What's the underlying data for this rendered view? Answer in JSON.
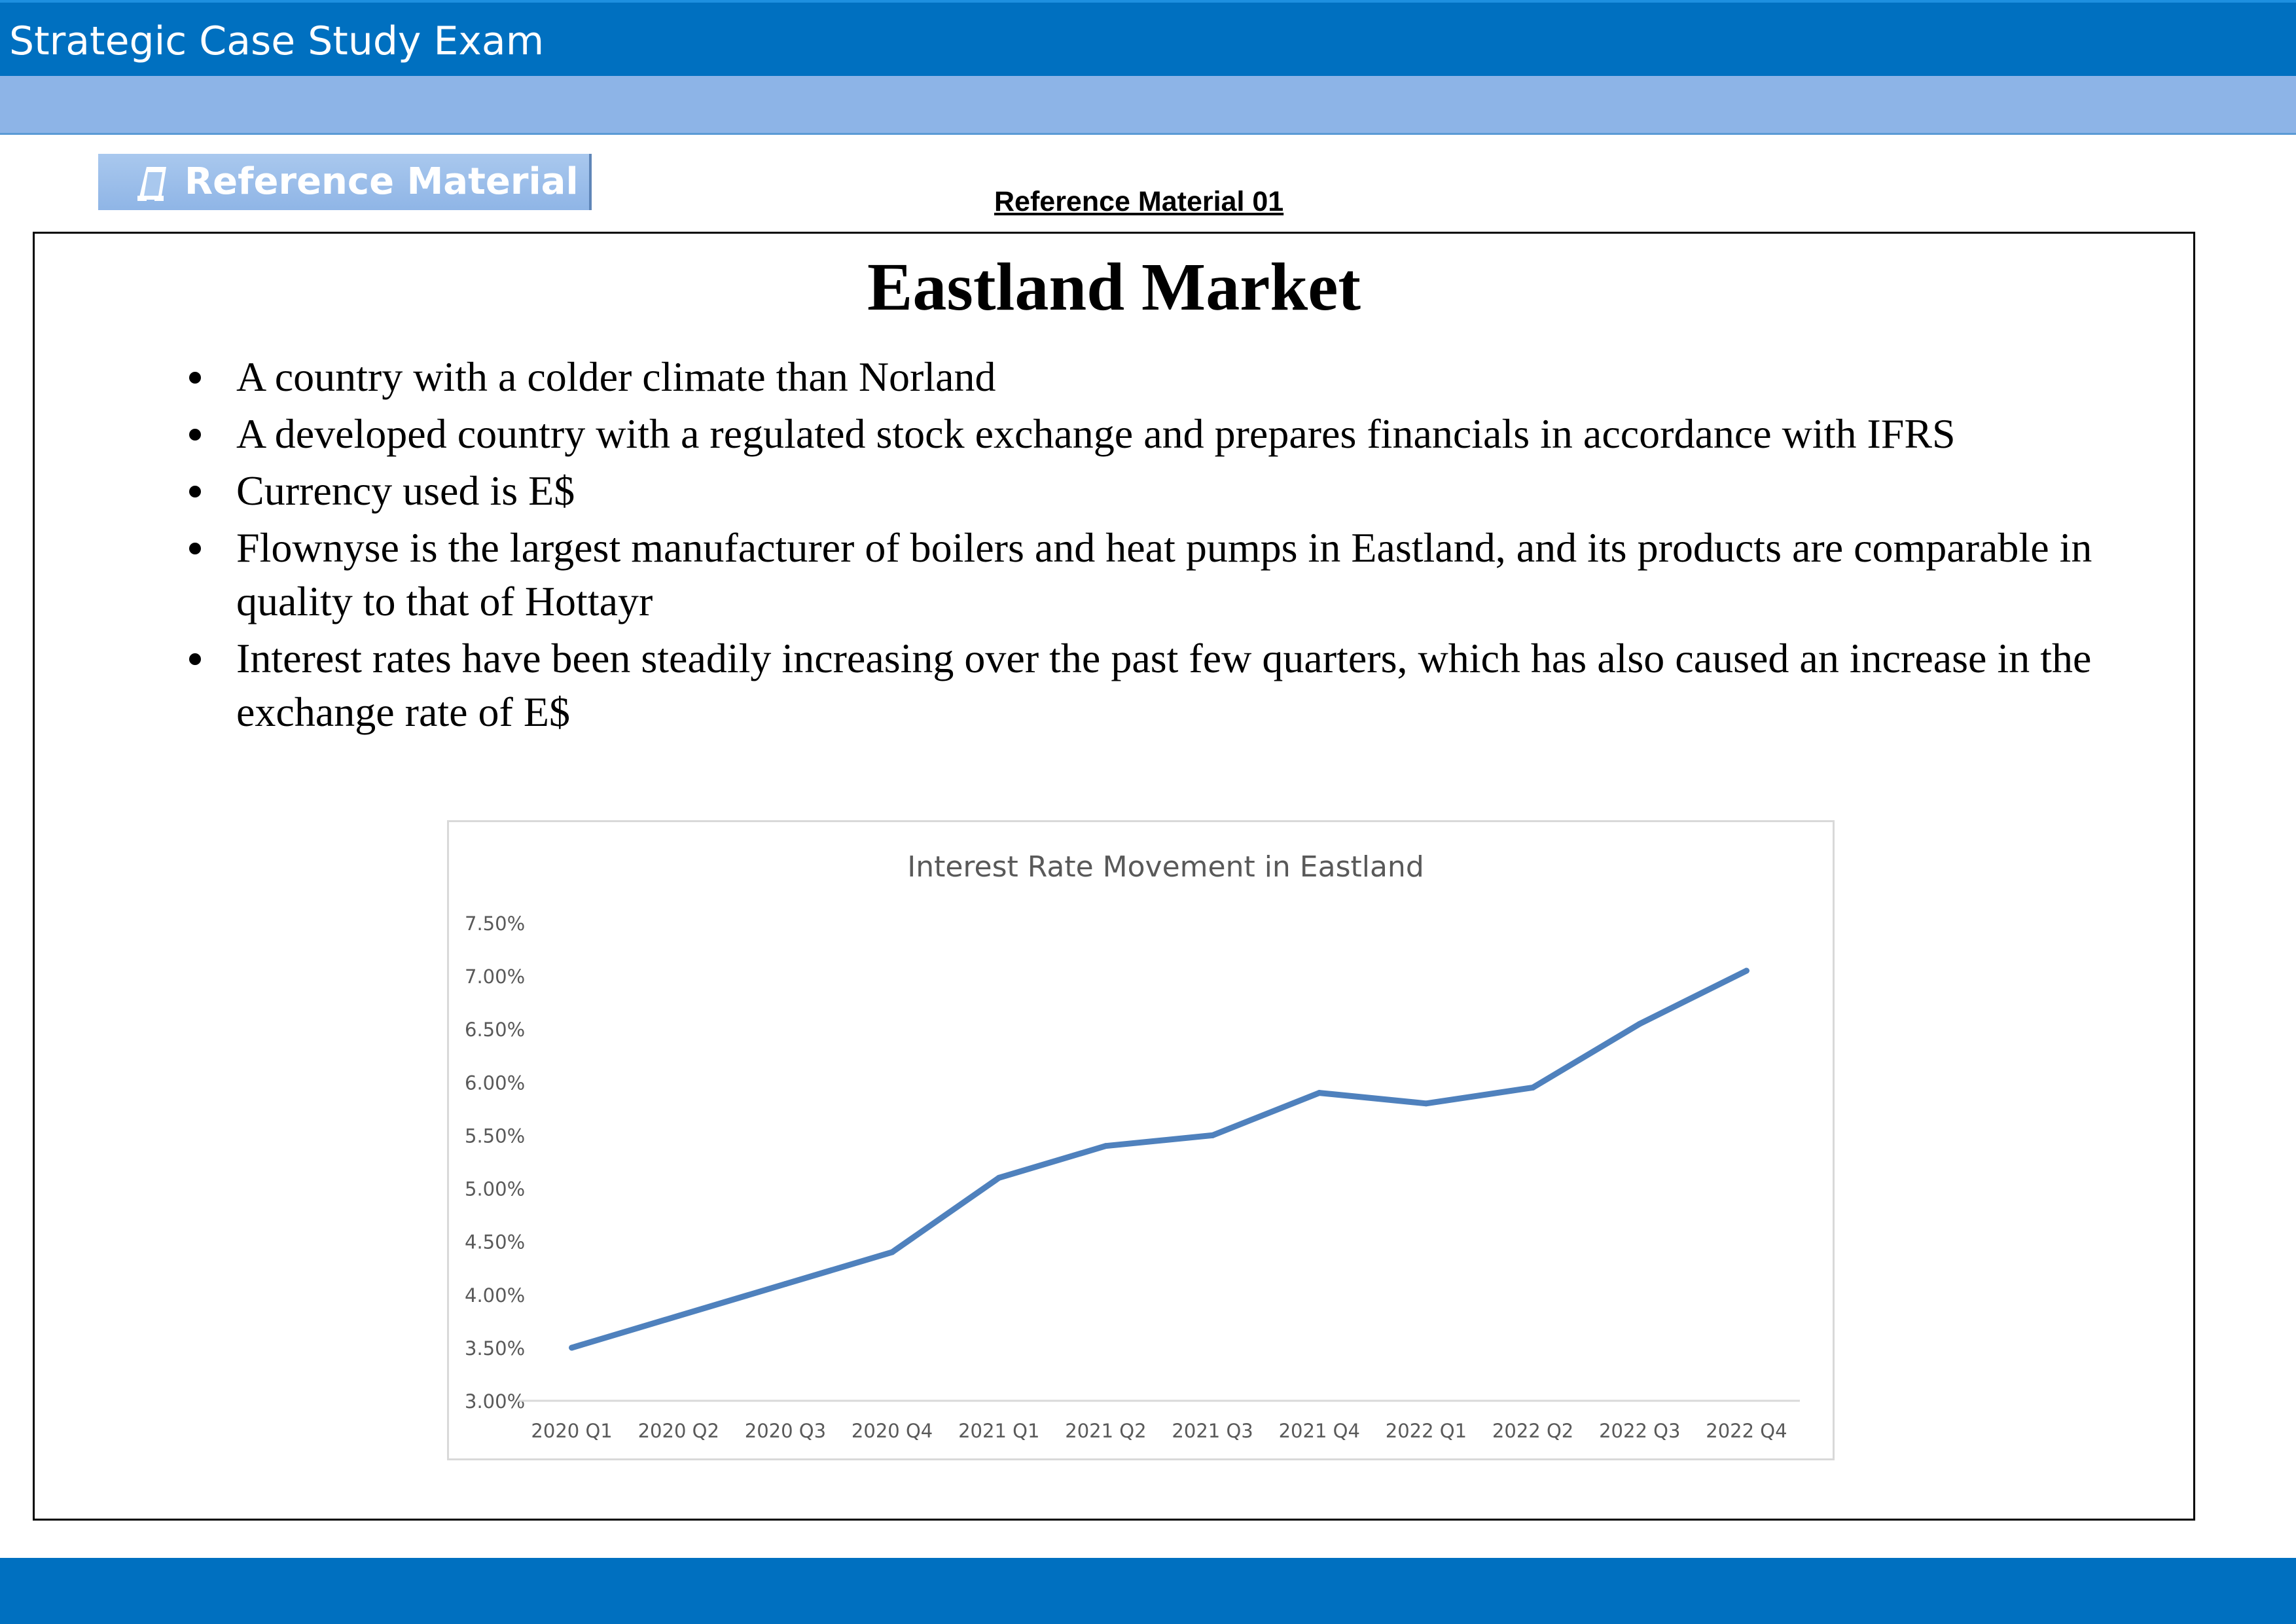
{
  "header": {
    "title": "Strategic Case Study Exam"
  },
  "reference_button": {
    "label": "Reference Material",
    "icon": "document-icon"
  },
  "reference_heading": "Reference Material 01",
  "panel": {
    "title": "Eastland Market",
    "bullets": [
      "A country with a colder climate than Norland",
      "A developed country with a regulated stock exchange and prepares financials in accordance with IFRS",
      "Currency used is E$",
      "Flownyse is the largest manufacturer of boilers and heat pumps in Eastland, and its products are comparable in quality to that of Hottayr",
      "Interest rates have been steadily increasing over the past few quarters, which has also caused an increase in the exchange rate of E$"
    ]
  },
  "chart_data": {
    "type": "line",
    "title": "Interest Rate Movement in Eastland",
    "categories": [
      "2020 Q1",
      "2020 Q2",
      "2020 Q3",
      "2020 Q4",
      "2021 Q1",
      "2021 Q2",
      "2021 Q3",
      "2021 Q4",
      "2022 Q1",
      "2022 Q2",
      "2022 Q3",
      "2022 Q4"
    ],
    "series": [
      {
        "values": [
          3.5,
          3.8,
          4.1,
          4.4,
          5.1,
          5.4,
          5.5,
          5.9,
          5.8,
          5.95,
          6.55,
          7.05
        ]
      }
    ],
    "y_ticks": [
      "3.00%",
      "3.50%",
      "4.00%",
      "4.50%",
      "5.00%",
      "5.50%",
      "6.00%",
      "6.50%",
      "7.00%",
      "7.50%"
    ],
    "ylim": [
      3.0,
      7.5
    ],
    "xlabel": "",
    "ylabel": "",
    "grid": false,
    "legend": "none",
    "line_color": "#4f81bd"
  }
}
